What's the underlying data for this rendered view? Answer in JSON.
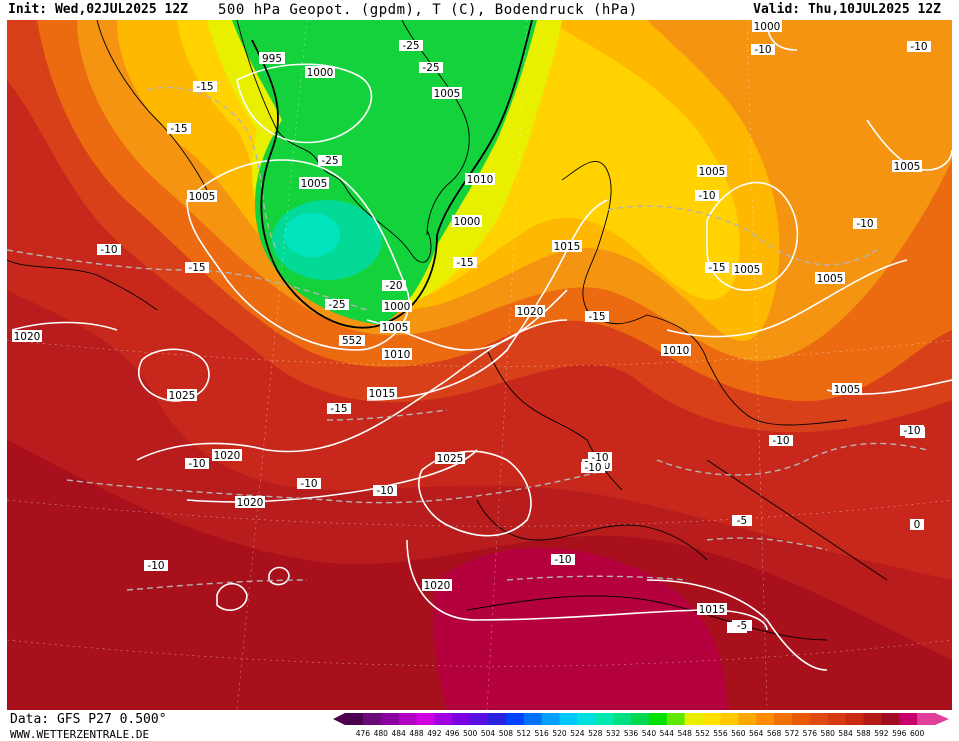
{
  "header": {
    "init": "Init: Wed,02JUL2025 12Z",
    "title": "500 hPa Geopot. (gpdm), T (C), Bodendruck (hPa)",
    "valid": "Valid: Thu,10JUL2025 12Z"
  },
  "footer": {
    "data_line": "Data: GFS P27 0.500°",
    "site": "WWW.WETTERZENTRALE.DE"
  },
  "scale": {
    "values": [
      "476",
      "480",
      "484",
      "488",
      "492",
      "496",
      "500",
      "504",
      "508",
      "512",
      "516",
      "520",
      "524",
      "528",
      "532",
      "536",
      "540",
      "544",
      "548",
      "552",
      "556",
      "560",
      "564",
      "568",
      "572",
      "576",
      "580",
      "584",
      "588",
      "592",
      "596",
      "600"
    ],
    "colors": [
      "#4b0050",
      "#6a0a78",
      "#8a00a0",
      "#b000c0",
      "#d000e0",
      "#a000e0",
      "#7a00e0",
      "#5a10e0",
      "#2a20e0",
      "#0040ff",
      "#0070ff",
      "#00a0ff",
      "#00c8ff",
      "#00e0e0",
      "#00e8b0",
      "#00e080",
      "#00d850",
      "#00e000",
      "#60e800",
      "#e8f000",
      "#ffe000",
      "#ffc800",
      "#ffa800",
      "#ff8c00",
      "#f07000",
      "#e85a00",
      "#e04a10",
      "#d83a10",
      "#c82a14",
      "#b41a18",
      "#a00c20",
      "#c8006e",
      "#e0409c"
    ]
  },
  "pressure_labels": [
    "995",
    "1000",
    "1005",
    "1000",
    "1005",
    "1010",
    "1005",
    "1010",
    "1015",
    "1020",
    "1000",
    "1005",
    "1010",
    "1015",
    "1025",
    "1020",
    "1020",
    "1025",
    "1020",
    "1020",
    "1015",
    "1005",
    "1005",
    "1005",
    "1005",
    "1010",
    "1005",
    "1000"
  ],
  "temp_labels": [
    "-25",
    "-25",
    "-15",
    "-15",
    "-25",
    "-20",
    "-25",
    "-15",
    "-10",
    "-15",
    "-15",
    "-10",
    "-10",
    "-10",
    "-10",
    "-10",
    "-10",
    "-10",
    "-10",
    "-5",
    "-5",
    "-10",
    "-10",
    "-15",
    "-15",
    "-10",
    "-10",
    "-5",
    "-5",
    "0",
    "-10"
  ],
  "geo_label": "552",
  "map_legend_colors": {
    "deep_red": "#a8101c",
    "red": "#c8281c",
    "red_orange": "#d8401a",
    "orange": "#ec6a10",
    "orange_light": "#f49410",
    "yellow_orange": "#ffb800",
    "yellow": "#fde000",
    "lime": "#e8f000",
    "green": "#14d23c",
    "teal": "#00dca8",
    "ocean_magenta": "#b4003c"
  }
}
